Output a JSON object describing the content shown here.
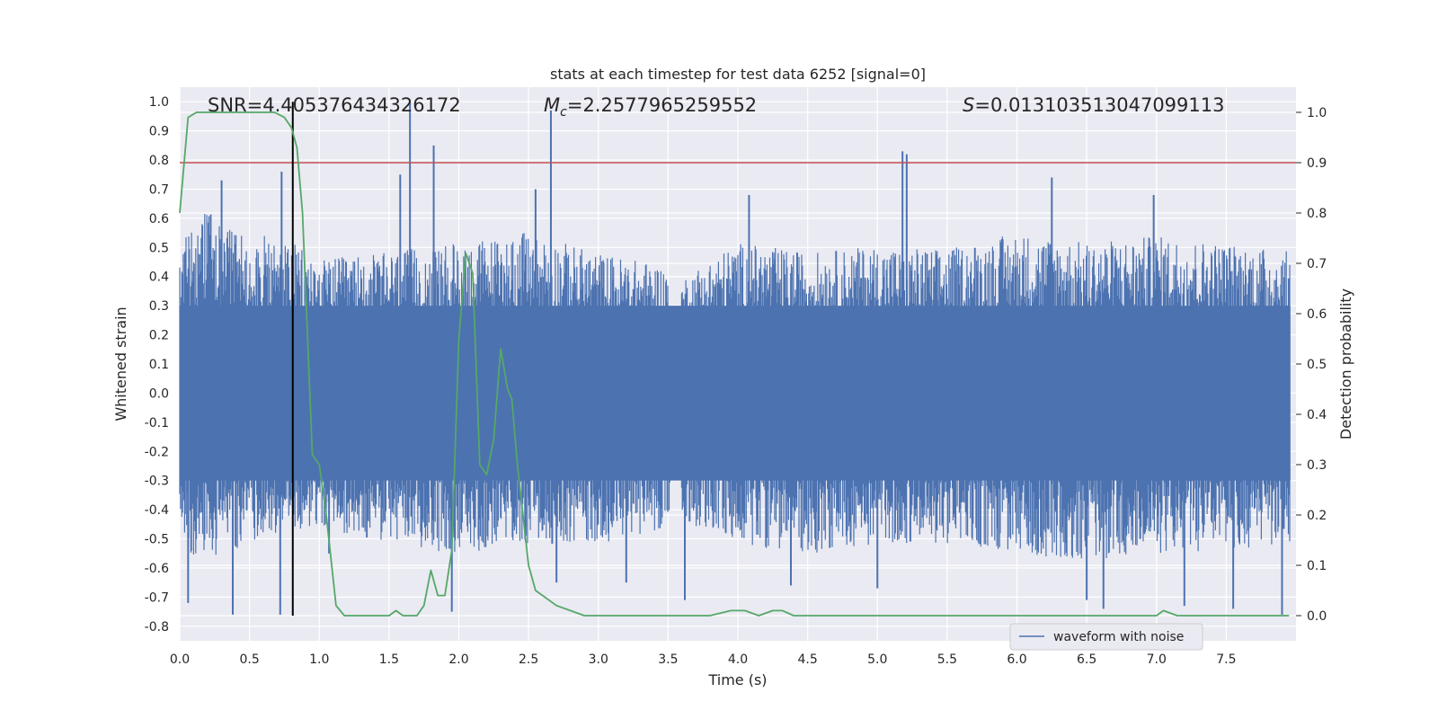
{
  "chart_data": {
    "type": "line",
    "title": "stats at each timestep for test data 6252 [signal=0]",
    "xlabel": "Time (s)",
    "ylabel": "Whitened strain",
    "y2label": "Detection probability",
    "xlim": [
      0.0,
      8.0
    ],
    "ylim": [
      -0.85,
      1.05
    ],
    "y2lim": [
      -0.05,
      1.05
    ],
    "xticks": [
      "0.0",
      "0.5",
      "1.0",
      "1.5",
      "2.0",
      "2.5",
      "3.0",
      "3.5",
      "4.0",
      "4.5",
      "5.0",
      "5.5",
      "6.0",
      "6.5",
      "7.0",
      "7.5"
    ],
    "yticks": [
      "-0.8",
      "-0.7",
      "-0.6",
      "-0.5",
      "-0.4",
      "-0.3",
      "-0.2",
      "-0.1",
      "0.0",
      "0.1",
      "0.2",
      "0.3",
      "0.4",
      "0.5",
      "0.6",
      "0.7",
      "0.8",
      "0.9",
      "1.0"
    ],
    "y2ticks": [
      "0.0",
      "0.1",
      "0.2",
      "0.3",
      "0.4",
      "0.5",
      "0.6",
      "0.7",
      "0.8",
      "0.9",
      "1.0"
    ],
    "grid": true,
    "legend_position": "lower-right",
    "annotations": {
      "snr_label": "SNR",
      "snr_value": "4.405376434326172",
      "mc_label": "M",
      "mc_subscript": "c",
      "mc_value": "2.2577965259552",
      "s_label": "S",
      "s_value": "0.013103513047099113"
    },
    "threshold_line": {
      "y2": 0.9,
      "color": "#c44e52"
    },
    "vertical_line": {
      "x": 0.81,
      "color": "#000000"
    },
    "series": [
      {
        "name": "waveform with noise",
        "axis": "left",
        "color": "#4c72b0",
        "envelope_x": [
          0.0,
          0.1,
          0.2,
          0.3,
          0.5,
          0.8,
          1.0,
          1.5,
          2.0,
          2.5,
          3.0,
          3.5,
          3.55,
          3.6,
          4.0,
          4.5,
          5.0,
          5.5,
          6.0,
          6.5,
          7.0,
          7.5,
          8.0
        ],
        "envelope_top": [
          0.45,
          0.5,
          0.55,
          0.5,
          0.48,
          0.45,
          0.4,
          0.42,
          0.45,
          0.48,
          0.42,
          0.38,
          0.15,
          0.35,
          0.45,
          0.42,
          0.44,
          0.43,
          0.48,
          0.45,
          0.47,
          0.45,
          0.42
        ],
        "envelope_bottom": [
          -0.45,
          -0.5,
          -0.5,
          -0.48,
          -0.45,
          -0.42,
          -0.4,
          -0.45,
          -0.48,
          -0.45,
          -0.45,
          -0.4,
          -0.15,
          -0.38,
          -0.45,
          -0.48,
          -0.45,
          -0.45,
          -0.48,
          -0.5,
          -0.48,
          -0.47,
          -0.45
        ],
        "peaks": [
          {
            "x": 0.06,
            "y": -0.72
          },
          {
            "x": 0.3,
            "y": 0.73
          },
          {
            "x": 0.38,
            "y": -0.76
          },
          {
            "x": 0.72,
            "y": -0.76
          },
          {
            "x": 0.73,
            "y": 0.76
          },
          {
            "x": 1.07,
            "y": -0.55
          },
          {
            "x": 1.58,
            "y": 0.75
          },
          {
            "x": 1.65,
            "y": 1.0
          },
          {
            "x": 1.82,
            "y": 0.85
          },
          {
            "x": 1.95,
            "y": -0.75
          },
          {
            "x": 2.55,
            "y": 0.7
          },
          {
            "x": 2.66,
            "y": 0.97
          },
          {
            "x": 2.7,
            "y": -0.65
          },
          {
            "x": 3.2,
            "y": -0.65
          },
          {
            "x": 3.62,
            "y": -0.71
          },
          {
            "x": 4.08,
            "y": 0.68
          },
          {
            "x": 4.38,
            "y": -0.66
          },
          {
            "x": 5.0,
            "y": -0.67
          },
          {
            "x": 5.18,
            "y": 0.83
          },
          {
            "x": 5.21,
            "y": 0.82
          },
          {
            "x": 6.25,
            "y": 0.74
          },
          {
            "x": 6.5,
            "y": -0.71
          },
          {
            "x": 6.62,
            "y": -0.74
          },
          {
            "x": 6.98,
            "y": 0.68
          },
          {
            "x": 7.2,
            "y": -0.73
          },
          {
            "x": 7.55,
            "y": -0.74
          },
          {
            "x": 7.9,
            "y": -0.76
          }
        ]
      },
      {
        "name": "",
        "axis": "right",
        "color": "#55a868",
        "x": [
          0.0,
          0.06,
          0.12,
          0.2,
          0.4,
          0.6,
          0.68,
          0.75,
          0.8,
          0.84,
          0.88,
          0.95,
          1.0,
          1.05,
          1.12,
          1.18,
          1.3,
          1.4,
          1.5,
          1.55,
          1.6,
          1.7,
          1.75,
          1.8,
          1.85,
          1.9,
          1.95,
          2.0,
          2.05,
          2.1,
          2.15,
          2.2,
          2.25,
          2.3,
          2.35,
          2.38,
          2.42,
          2.5,
          2.55,
          2.6,
          2.7,
          2.8,
          2.9,
          3.0,
          3.2,
          3.5,
          3.8,
          3.95,
          4.05,
          4.15,
          4.25,
          4.32,
          4.4,
          4.6,
          5.0,
          5.2,
          5.5,
          6.0,
          6.25,
          6.5,
          6.75,
          7.0,
          7.05,
          7.15,
          7.3,
          7.6,
          7.95
        ],
        "values": [
          0.8,
          0.99,
          1.0,
          1.0,
          1.0,
          1.0,
          1.0,
          0.99,
          0.97,
          0.93,
          0.8,
          0.32,
          0.3,
          0.2,
          0.02,
          0.0,
          0.0,
          0.0,
          0.0,
          0.01,
          0.0,
          0.0,
          0.02,
          0.09,
          0.04,
          0.04,
          0.13,
          0.55,
          0.72,
          0.68,
          0.3,
          0.28,
          0.35,
          0.53,
          0.45,
          0.43,
          0.3,
          0.1,
          0.05,
          0.04,
          0.02,
          0.01,
          0.0,
          0.0,
          0.0,
          0.0,
          0.0,
          0.01,
          0.01,
          0.0,
          0.01,
          0.01,
          0.0,
          0.0,
          0.0,
          0.0,
          0.0,
          0.0,
          0.0,
          0.0,
          0.0,
          0.0,
          0.01,
          0.0,
          0.0,
          0.0,
          0.0
        ]
      }
    ]
  }
}
